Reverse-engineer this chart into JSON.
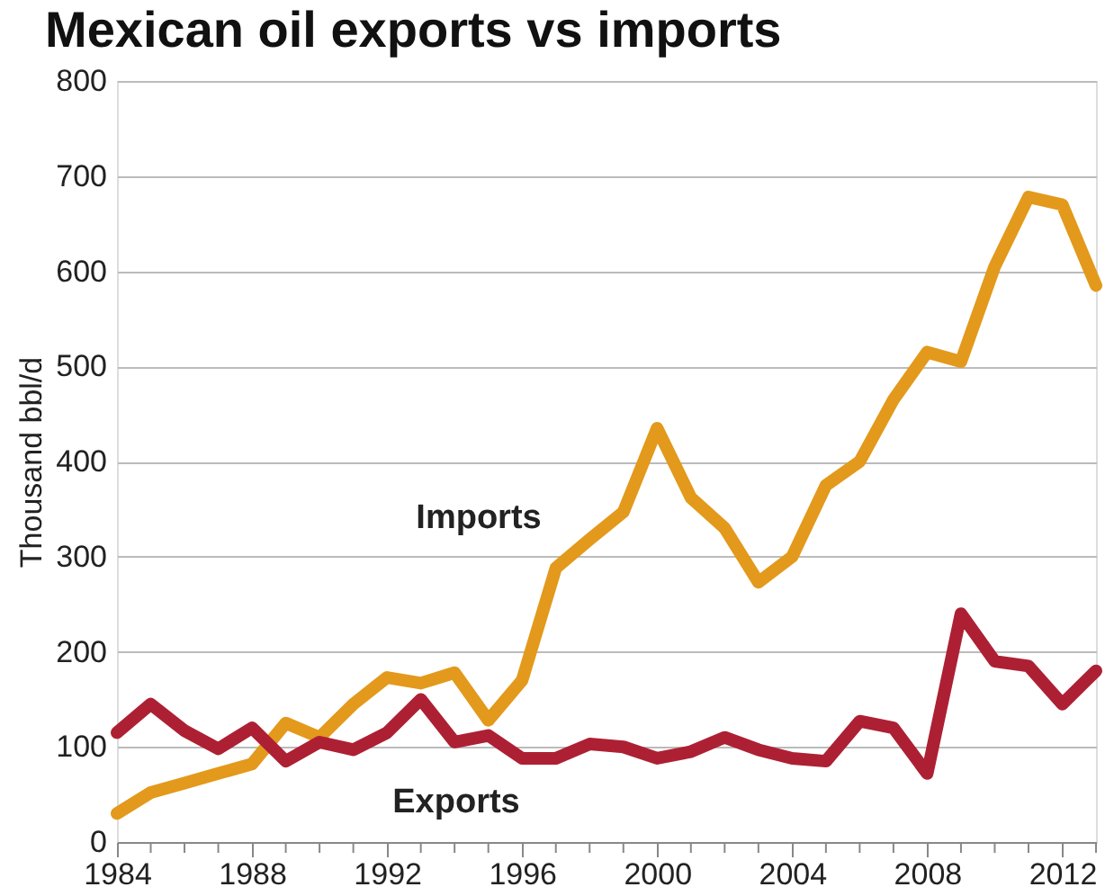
{
  "chart_data": {
    "type": "line",
    "title": "Mexican oil exports vs imports",
    "ylabel": "Thousand bbl/d",
    "x": [
      1984,
      1985,
      1986,
      1987,
      1988,
      1989,
      1990,
      1991,
      1992,
      1993,
      1994,
      1995,
      1996,
      1997,
      1998,
      1999,
      2000,
      2001,
      2002,
      2003,
      2004,
      2005,
      2006,
      2007,
      2008,
      2009,
      2010,
      2011,
      2012,
      2013
    ],
    "series": [
      {
        "name": "Imports",
        "color": "#e3991b",
        "values": [
          30,
          52,
          62,
          72,
          82,
          125,
          110,
          145,
          173,
          167,
          178,
          128,
          170,
          288,
          318,
          347,
          435,
          362,
          330,
          273,
          300,
          375,
          400,
          465,
          515,
          505,
          605,
          678,
          670,
          585
        ]
      },
      {
        "name": "Exports",
        "color": "#ad2033",
        "values": [
          115,
          145,
          117,
          98,
          120,
          85,
          105,
          97,
          115,
          150,
          105,
          112,
          88,
          88,
          103,
          100,
          88,
          95,
          110,
          97,
          88,
          85,
          127,
          120,
          72,
          240,
          190,
          185,
          145,
          180
        ]
      }
    ],
    "xlim": [
      1984,
      2013
    ],
    "ylim": [
      0,
      800
    ],
    "yticks": [
      0,
      100,
      200,
      300,
      400,
      500,
      600,
      700,
      800
    ],
    "xticks": [
      1984,
      {
        "value": 1985,
        "label": null
      },
      {
        "value": 1986,
        "label": null
      },
      {
        "value": 1987,
        "label": null
      },
      1988,
      {
        "value": 1989,
        "label": null
      },
      {
        "value": 1990,
        "label": null
      },
      {
        "value": 1991,
        "label": null
      },
      1992,
      {
        "value": 1993,
        "label": null
      },
      {
        "value": 1994,
        "label": null
      },
      {
        "value": 1995,
        "label": null
      },
      1996,
      {
        "value": 1997,
        "label": null
      },
      {
        "value": 1998,
        "label": null
      },
      {
        "value": 1999,
        "label": null
      },
      2000,
      {
        "value": 2001,
        "label": null
      },
      {
        "value": 2002,
        "label": null
      },
      {
        "value": 2003,
        "label": null
      },
      2004,
      {
        "value": 2005,
        "label": null
      },
      {
        "value": 2006,
        "label": null
      },
      {
        "value": 2007,
        "label": null
      },
      2008,
      {
        "value": 2009,
        "label": null
      },
      {
        "value": 2010,
        "label": null
      },
      {
        "value": 2011,
        "label": null
      },
      2012,
      {
        "value": 2013,
        "label": null
      }
    ],
    "grid": "y",
    "legend": false,
    "marker": "none",
    "line_style": "solid"
  }
}
